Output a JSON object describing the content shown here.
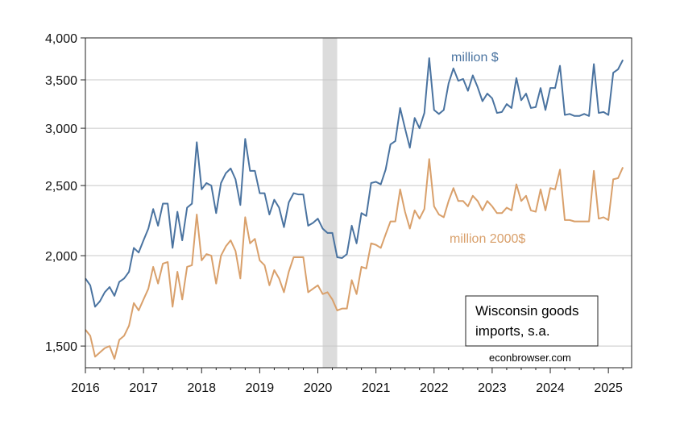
{
  "chart_data": {
    "type": "line",
    "y_scale": "log",
    "ylim": [
      1400,
      4000
    ],
    "xlim": [
      2016.0,
      2025.4
    ],
    "y_ticks": [
      {
        "value": 1500,
        "label": "1,500"
      },
      {
        "value": 2000,
        "label": "2,000"
      },
      {
        "value": 2500,
        "label": "2,500"
      },
      {
        "value": 3000,
        "label": "3,000"
      },
      {
        "value": 3500,
        "label": "3,500"
      },
      {
        "value": 4000,
        "label": "4,000"
      }
    ],
    "x_ticks": [
      {
        "value": 2016,
        "label": "2016"
      },
      {
        "value": 2017,
        "label": "2017"
      },
      {
        "value": 2018,
        "label": "2018"
      },
      {
        "value": 2019,
        "label": "2019"
      },
      {
        "value": 2020,
        "label": "2020"
      },
      {
        "value": 2021,
        "label": "2021"
      },
      {
        "value": 2022,
        "label": "2022"
      },
      {
        "value": 2023,
        "label": "2023"
      },
      {
        "value": 2024,
        "label": "2024"
      },
      {
        "value": 2025,
        "label": "2025"
      }
    ],
    "grid": "horizontal",
    "recession": {
      "start": "2020-02",
      "end": "2020-04"
    },
    "start_month": "2016-01",
    "series": [
      {
        "name": "million $",
        "color": "#4a73a0",
        "values": [
          1860,
          1820,
          1700,
          1730,
          1780,
          1810,
          1760,
          1840,
          1860,
          1900,
          2050,
          2020,
          2100,
          2180,
          2320,
          2200,
          2360,
          2360,
          2050,
          2300,
          2100,
          2330,
          2360,
          2870,
          2470,
          2520,
          2500,
          2290,
          2520,
          2600,
          2640,
          2550,
          2350,
          2900,
          2620,
          2620,
          2440,
          2440,
          2280,
          2390,
          2330,
          2190,
          2370,
          2440,
          2430,
          2430,
          2200,
          2220,
          2250,
          2180,
          2150,
          2150,
          1990,
          1985,
          2010,
          2200,
          2080,
          2290,
          2270,
          2520,
          2530,
          2510,
          2630,
          2850,
          2880,
          3200,
          3000,
          2820,
          3100,
          3000,
          3150,
          3750,
          3180,
          3140,
          3180,
          3460,
          3630,
          3490,
          3510,
          3380,
          3550,
          3420,
          3270,
          3350,
          3300,
          3150,
          3160,
          3240,
          3200,
          3520,
          3280,
          3350,
          3200,
          3210,
          3410,
          3180,
          3410,
          3410,
          3660,
          3130,
          3140,
          3120,
          3120,
          3140,
          3120,
          3680,
          3150,
          3160,
          3130,
          3580,
          3620,
          3730
        ]
      },
      {
        "name": "million 2000$",
        "color": "#d9a06b",
        "values": [
          1580,
          1550,
          1450,
          1470,
          1490,
          1500,
          1440,
          1530,
          1550,
          1600,
          1720,
          1680,
          1740,
          1800,
          1930,
          1830,
          1950,
          1960,
          1700,
          1900,
          1740,
          1930,
          1940,
          2280,
          1970,
          2010,
          2000,
          1830,
          2000,
          2060,
          2100,
          2030,
          1860,
          2260,
          2080,
          2110,
          1970,
          1940,
          1820,
          1910,
          1860,
          1780,
          1900,
          1990,
          1990,
          1990,
          1780,
          1800,
          1820,
          1770,
          1780,
          1740,
          1680,
          1690,
          1690,
          1850,
          1770,
          1930,
          1920,
          2080,
          2070,
          2050,
          2140,
          2230,
          2230,
          2470,
          2300,
          2180,
          2310,
          2250,
          2320,
          2720,
          2340,
          2280,
          2260,
          2380,
          2480,
          2380,
          2380,
          2340,
          2420,
          2380,
          2310,
          2380,
          2340,
          2290,
          2290,
          2330,
          2310,
          2510,
          2380,
          2420,
          2310,
          2300,
          2470,
          2310,
          2480,
          2470,
          2630,
          2240,
          2240,
          2230,
          2230,
          2230,
          2230,
          2620,
          2250,
          2260,
          2240,
          2550,
          2560,
          2650
        ]
      }
    ],
    "annotations": {
      "series_label_nominal": "million $",
      "series_label_real": "million 2000$",
      "note_line1": "Wisconsin goods",
      "note_line2": "imports, s.a.",
      "source": "econbrowser.com"
    },
    "colors": {
      "nominal": "#4a73a0",
      "real": "#d9a06b",
      "recession": "#dcdcdc",
      "grid": "#c8c8c8",
      "axis": "#222222"
    }
  }
}
